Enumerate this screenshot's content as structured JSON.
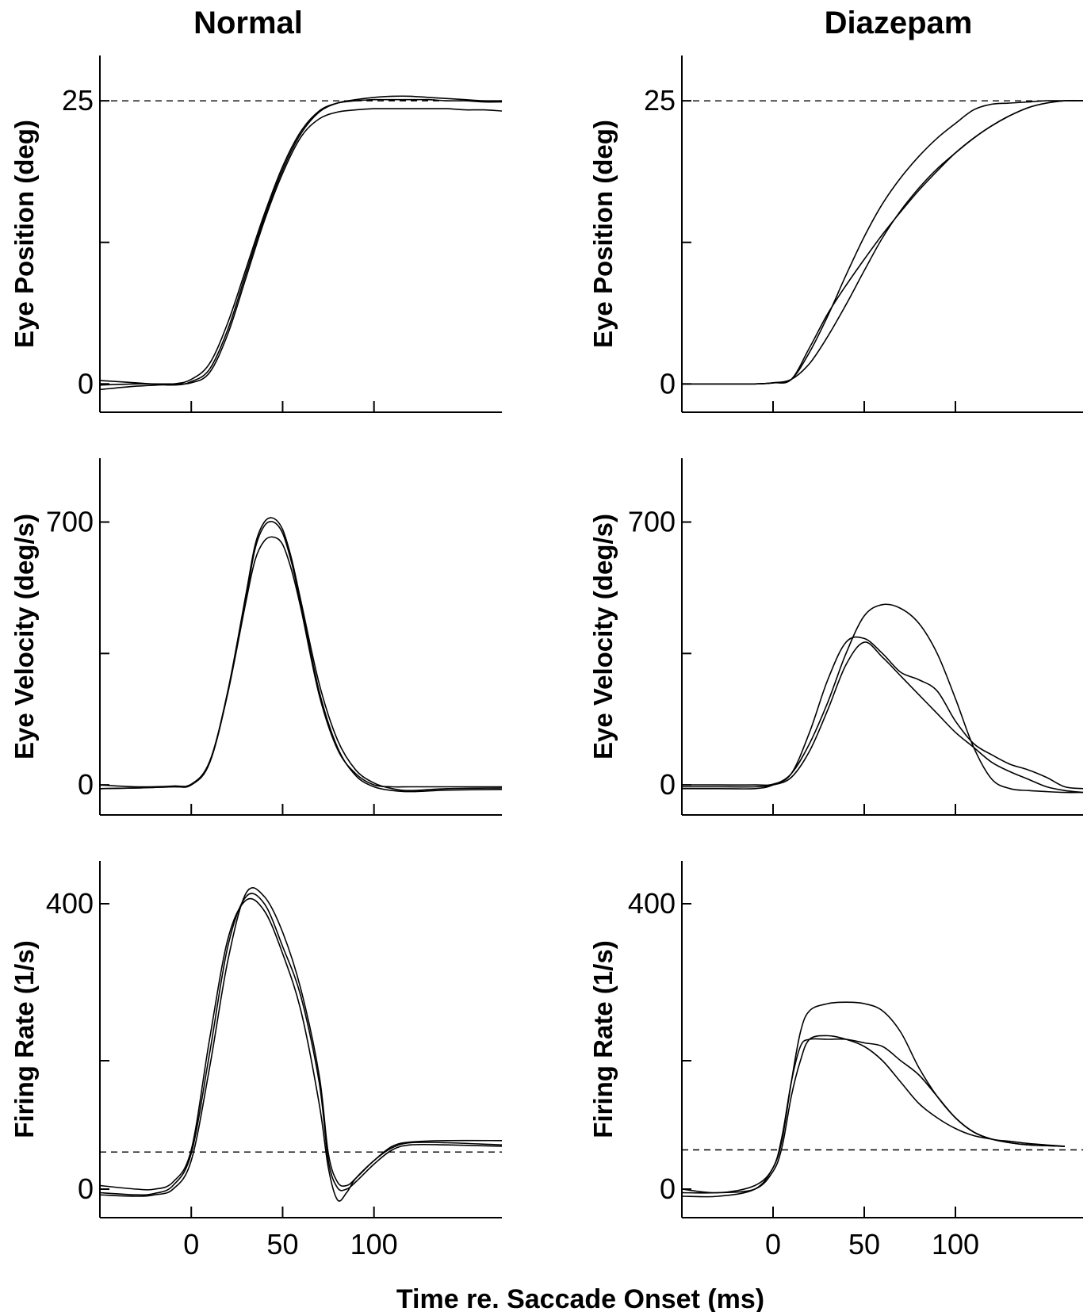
{
  "columns": [
    "Normal",
    "Diazepam"
  ],
  "x_axis_label": "Time re. Saccade Onset (ms)",
  "chart_data": [
    {
      "type": "line",
      "row": 0,
      "col": 0,
      "column_title": "Normal",
      "ylabel": "Eye Position (deg)",
      "xlim": [
        -50,
        170
      ],
      "ylim": [
        -2.5,
        29
      ],
      "yticks": [
        0,
        12.5,
        25
      ],
      "ytick_labels": [
        "0",
        "",
        "25"
      ],
      "xticks": [
        0,
        50,
        100
      ],
      "xtick_labels": [],
      "reference_line": 25,
      "series": [
        {
          "name": "trial 1",
          "x": [
            -50,
            -30,
            -10,
            0,
            10,
            20,
            30,
            40,
            50,
            60,
            70,
            80,
            90,
            100,
            110,
            120,
            130,
            140,
            150,
            160,
            170
          ],
          "y": [
            0.3,
            0.1,
            -0.1,
            0.2,
            1.3,
            4.8,
            9.8,
            14.7,
            18.9,
            22.1,
            24.0,
            24.8,
            25.1,
            25.3,
            25.4,
            25.4,
            25.3,
            25.2,
            25.1,
            25.0,
            25.0
          ]
        },
        {
          "name": "trial 2",
          "x": [
            -50,
            -30,
            -10,
            0,
            10,
            20,
            30,
            40,
            50,
            60,
            70,
            80,
            90,
            100,
            110,
            120,
            130,
            140,
            150,
            160,
            170
          ],
          "y": [
            -0.5,
            -0.2,
            0.0,
            0.4,
            1.8,
            5.4,
            10.2,
            15.0,
            19.2,
            22.3,
            24.1,
            24.8,
            25.0,
            25.1,
            25.1,
            25.1,
            25.1,
            25.0,
            25.0,
            24.9,
            24.9
          ]
        },
        {
          "name": "trial 3",
          "x": [
            -50,
            -30,
            -10,
            0,
            10,
            20,
            30,
            40,
            50,
            60,
            70,
            80,
            90,
            100,
            110,
            120,
            130,
            140,
            150,
            160,
            170
          ],
          "y": [
            -0.1,
            0.0,
            0.0,
            0.1,
            1.0,
            4.4,
            9.4,
            14.4,
            18.6,
            21.8,
            23.4,
            24.0,
            24.2,
            24.3,
            24.3,
            24.3,
            24.3,
            24.3,
            24.2,
            24.2,
            24.1
          ]
        }
      ]
    },
    {
      "type": "line",
      "row": 0,
      "col": 1,
      "column_title": "Diazepam",
      "ylabel": "Eye Position (deg)",
      "xlim": [
        -50,
        170
      ],
      "ylim": [
        -2.5,
        29
      ],
      "yticks": [
        0,
        12.5,
        25
      ],
      "ytick_labels": [
        "0",
        "",
        "25"
      ],
      "xticks": [
        0,
        50,
        100
      ],
      "xtick_labels": [],
      "reference_line": 25,
      "series": [
        {
          "name": "trial 1",
          "x": [
            -50,
            -30,
            -10,
            0,
            10,
            20,
            30,
            40,
            50,
            60,
            70,
            80,
            90,
            100,
            110,
            120,
            130,
            140,
            150,
            160,
            170
          ],
          "y": [
            0.0,
            0.0,
            0.0,
            0.1,
            0.4,
            2.8,
            6.0,
            9.6,
            13.0,
            15.9,
            18.2,
            20.1,
            21.7,
            23.0,
            24.2,
            24.7,
            24.8,
            24.9,
            25.0,
            25.0,
            25.0
          ]
        },
        {
          "name": "trial 2",
          "x": [
            -50,
            -30,
            -10,
            0,
            10,
            20,
            30,
            40,
            50,
            60,
            70,
            80,
            90,
            100,
            110,
            120,
            130,
            140,
            150,
            160,
            170
          ],
          "y": [
            0.0,
            0.0,
            0.0,
            0.1,
            0.4,
            3.2,
            6.2,
            8.7,
            11.0,
            13.2,
            15.2,
            17.1,
            18.8,
            20.4,
            21.7,
            22.8,
            23.7,
            24.4,
            24.8,
            25.0,
            25.0
          ]
        },
        {
          "name": "trial 3",
          "x": [
            -50,
            -30,
            -10,
            0,
            10,
            20,
            30,
            40,
            50,
            60,
            70,
            80,
            90,
            100,
            110,
            120,
            130,
            140,
            150,
            160,
            170
          ],
          "y": [
            0.0,
            0.0,
            0.0,
            0.1,
            0.4,
            1.8,
            4.2,
            7.0,
            10.0,
            12.9,
            15.3,
            17.3,
            19.0,
            20.4,
            21.7,
            22.8,
            23.7,
            24.4,
            24.8,
            25.0,
            25.0
          ]
        }
      ]
    },
    {
      "type": "line",
      "row": 1,
      "col": 0,
      "column_title": "Normal",
      "ylabel": "Eye Velocity (deg/s)",
      "xlim": [
        -50,
        170
      ],
      "ylim": [
        -80,
        870
      ],
      "yticks": [
        0,
        350,
        700
      ],
      "ytick_labels": [
        "0",
        "",
        "700"
      ],
      "xticks": [
        0,
        50,
        100
      ],
      "xtick_labels": [],
      "series": [
        {
          "name": "trial 1",
          "x": [
            -50,
            -30,
            -10,
            0,
            10,
            20,
            30,
            35,
            40,
            45,
            50,
            55,
            60,
            70,
            80,
            90,
            100,
            110,
            120,
            140,
            170
          ],
          "y": [
            -10,
            -8,
            -5,
            0,
            60,
            250,
            510,
            640,
            700,
            710,
            680,
            600,
            490,
            270,
            120,
            40,
            5,
            -10,
            -15,
            -10,
            -8
          ]
        },
        {
          "name": "trial 2",
          "x": [
            -50,
            -30,
            -10,
            0,
            10,
            20,
            30,
            35,
            40,
            45,
            50,
            55,
            60,
            70,
            80,
            90,
            100,
            110,
            120,
            140,
            170
          ],
          "y": [
            -10,
            -8,
            -5,
            0,
            58,
            245,
            500,
            630,
            690,
            700,
            670,
            590,
            480,
            250,
            100,
            25,
            -5,
            -15,
            -18,
            -14,
            -12
          ]
        },
        {
          "name": "trial 3",
          "x": [
            -50,
            -30,
            -10,
            0,
            10,
            20,
            30,
            35,
            40,
            45,
            50,
            55,
            60,
            70,
            80,
            90,
            100,
            110,
            120,
            140,
            170
          ],
          "y": [
            0,
            -5,
            -3,
            2,
            62,
            245,
            490,
            600,
            650,
            660,
            640,
            570,
            470,
            240,
            95,
            30,
            0,
            -5,
            -5,
            -5,
            -5
          ]
        }
      ]
    },
    {
      "type": "line",
      "row": 1,
      "col": 1,
      "column_title": "Diazepam",
      "ylabel": "Eye Velocity (deg/s)",
      "xlim": [
        -50,
        170
      ],
      "ylim": [
        -80,
        870
      ],
      "yticks": [
        0,
        350,
        700
      ],
      "ytick_labels": [
        "0",
        "",
        "700"
      ],
      "xticks": [
        0,
        50,
        100
      ],
      "xtick_labels": [],
      "series": [
        {
          "name": "trial 1",
          "x": [
            -50,
            -30,
            -10,
            0,
            10,
            20,
            30,
            40,
            50,
            60,
            70,
            80,
            90,
            100,
            110,
            120,
            130,
            140,
            150,
            160,
            170
          ],
          "y": [
            -5,
            -5,
            -5,
            0,
            20,
            90,
            200,
            320,
            380,
            340,
            290,
            240,
            190,
            140,
            100,
            60,
            35,
            15,
            -5,
            -15,
            -20
          ]
        },
        {
          "name": "trial 2",
          "x": [
            -50,
            -30,
            -10,
            0,
            10,
            20,
            30,
            40,
            50,
            60,
            70,
            80,
            90,
            100,
            110,
            120,
            130,
            140,
            150,
            160,
            170
          ],
          "y": [
            0,
            0,
            0,
            2,
            30,
            140,
            280,
            380,
            390,
            350,
            300,
            280,
            250,
            170,
            110,
            80,
            55,
            40,
            20,
            -5,
            -10
          ]
        },
        {
          "name": "trial 3",
          "x": [
            -50,
            -30,
            -10,
            0,
            10,
            20,
            30,
            40,
            50,
            60,
            70,
            80,
            90,
            100,
            110,
            120,
            130,
            140,
            150,
            160,
            170
          ],
          "y": [
            -10,
            -10,
            -10,
            0,
            30,
            110,
            220,
            350,
            450,
            480,
            470,
            430,
            350,
            230,
            100,
            15,
            -10,
            -15,
            -18,
            -20,
            -20
          ]
        }
      ]
    },
    {
      "type": "line",
      "row": 2,
      "col": 0,
      "column_title": "Normal",
      "ylabel": "Firing Rate (1/s)",
      "xlim": [
        -50,
        170
      ],
      "ylim": [
        -40,
        460
      ],
      "yticks": [
        0,
        180,
        400
      ],
      "ytick_labels": [
        "0",
        "",
        "400"
      ],
      "xticks": [
        0,
        50,
        100
      ],
      "xtick_labels": [
        "0",
        "50",
        "100"
      ],
      "reference_line": 52,
      "series": [
        {
          "name": "trial 1",
          "x": [
            -50,
            -30,
            -20,
            -10,
            0,
            10,
            20,
            30,
            40,
            50,
            60,
            70,
            75,
            80,
            85,
            90,
            100,
            110,
            120,
            140,
            170
          ],
          "y": [
            -5,
            -8,
            -6,
            5,
            50,
            190,
            340,
            410,
            400,
            340,
            270,
            150,
            40,
            2,
            0,
            10,
            35,
            55,
            62,
            62,
            60
          ]
        },
        {
          "name": "trial 2",
          "x": [
            -50,
            -30,
            -20,
            -10,
            0,
            10,
            20,
            30,
            40,
            50,
            60,
            70,
            75,
            80,
            85,
            90,
            100,
            110,
            120,
            140,
            170
          ],
          "y": [
            -8,
            -10,
            -8,
            0,
            40,
            170,
            320,
            415,
            410,
            360,
            280,
            160,
            50,
            10,
            5,
            15,
            40,
            58,
            65,
            65,
            62
          ]
        },
        {
          "name": "trial 3",
          "x": [
            -50,
            -30,
            -20,
            -10,
            0,
            10,
            20,
            30,
            40,
            50,
            60,
            70,
            75,
            80,
            85,
            90,
            100,
            110,
            120,
            140,
            170
          ],
          "y": [
            5,
            0,
            0,
            10,
            55,
            210,
            350,
            405,
            390,
            330,
            250,
            120,
            30,
            -15,
            -5,
            15,
            40,
            60,
            66,
            68,
            68
          ]
        }
      ]
    },
    {
      "type": "line",
      "row": 2,
      "col": 1,
      "column_title": "Diazepam",
      "ylabel": "Firing Rate (1/s)",
      "xlim": [
        -50,
        170
      ],
      "ylim": [
        -40,
        460
      ],
      "yticks": [
        0,
        180,
        400
      ],
      "ytick_labels": [
        "0",
        "",
        "400"
      ],
      "xticks": [
        0,
        50,
        100
      ],
      "xtick_labels": [
        "0",
        "50",
        "100"
      ],
      "reference_line": 55,
      "series": [
        {
          "name": "trial 1",
          "x": [
            -50,
            -30,
            -10,
            0,
            5,
            10,
            15,
            20,
            30,
            40,
            50,
            60,
            70,
            80,
            90,
            100,
            110,
            120,
            130,
            140,
            160
          ],
          "y": [
            -10,
            -10,
            0,
            30,
            70,
            150,
            220,
            250,
            260,
            262,
            260,
            250,
            220,
            170,
            130,
            100,
            80,
            70,
            67,
            64,
            60
          ]
        },
        {
          "name": "trial 2",
          "x": [
            -50,
            -30,
            -10,
            0,
            5,
            10,
            15,
            20,
            30,
            40,
            50,
            60,
            70,
            80,
            90,
            100,
            110,
            120,
            130,
            140,
            160
          ],
          "y": [
            -5,
            -5,
            0,
            25,
            60,
            130,
            180,
            210,
            215,
            210,
            200,
            180,
            150,
            120,
            100,
            85,
            75,
            70,
            65,
            62,
            60
          ]
        },
        {
          "name": "trial 3",
          "x": [
            -50,
            -30,
            -10,
            0,
            5,
            10,
            15,
            20,
            30,
            40,
            50,
            60,
            70,
            80,
            90,
            100,
            110,
            120,
            130,
            140,
            160
          ],
          "y": [
            0,
            -5,
            5,
            30,
            75,
            150,
            200,
            210,
            210,
            210,
            205,
            200,
            180,
            160,
            130,
            100,
            80,
            70,
            65,
            62,
            60
          ]
        }
      ]
    }
  ]
}
